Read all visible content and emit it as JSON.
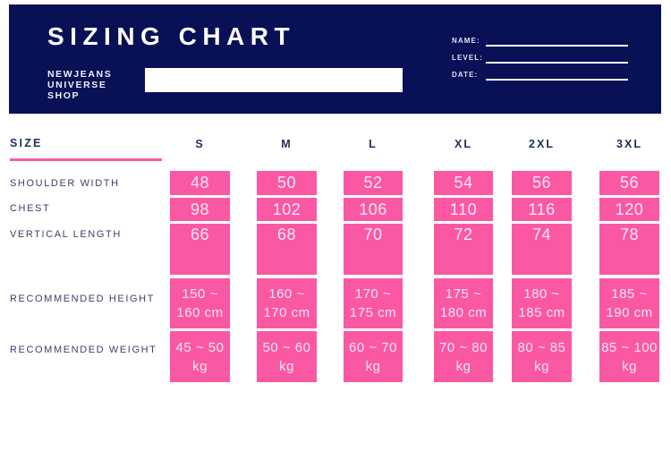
{
  "colors": {
    "navy": "#081155",
    "pink": "#FB58A3"
  },
  "header": {
    "title": "SIZING CHART",
    "brand": "NEWJEANS\nUNIVERSE\nSHOP",
    "fields": [
      {
        "label": "NAME:",
        "value": ""
      },
      {
        "label": "LEVEL:",
        "value": ""
      },
      {
        "label": "DATE:",
        "value": ""
      }
    ],
    "blank_box_value": ""
  },
  "table": {
    "size_label": "SIZE",
    "columns": [
      "S",
      "M",
      "L",
      "XL",
      "2XL",
      "3XL"
    ],
    "rows": [
      {
        "label": "SHOULDER WIDTH",
        "values": [
          "48",
          "50",
          "52",
          "54",
          "56",
          "56"
        ]
      },
      {
        "label": "CHEST",
        "values": [
          "98",
          "102",
          "106",
          "110",
          "116",
          "120"
        ]
      },
      {
        "label": "VERTICAL LENGTH",
        "values": [
          "66",
          "68",
          "70",
          "72",
          "74",
          "78"
        ]
      },
      {
        "label": "RECOMMENDED HEIGHT",
        "values": [
          "150 ~\n160 cm",
          "160 ~\n170 cm",
          "170 ~\n175 cm",
          "175 ~\n180 cm",
          "180 ~\n185 cm",
          "185 ~\n190 cm"
        ]
      },
      {
        "label": "RECOMMENDED WEIGHT",
        "values": [
          "45 ~ 50\nkg",
          "50 ~ 60\nkg",
          "60 ~ 70\nkg",
          "70 ~ 80\nkg",
          "80 ~ 85\nkg",
          "85 ~ 100\nkg"
        ]
      }
    ]
  }
}
